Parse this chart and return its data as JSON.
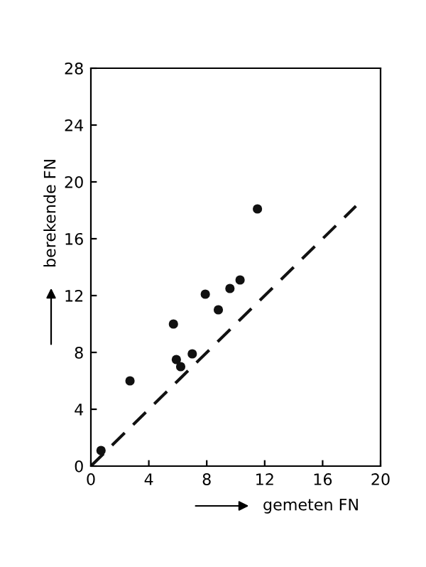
{
  "chart_data": {
    "type": "scatter",
    "xlabel": "gemeten FN",
    "ylabel": "berekende FN",
    "xlim": [
      0,
      20
    ],
    "ylim": [
      0,
      28
    ],
    "xticks": [
      0,
      4,
      8,
      12,
      16,
      20
    ],
    "yticks": [
      0,
      4,
      8,
      12,
      16,
      20,
      24,
      28
    ],
    "grid": false,
    "legend": false,
    "marker": "circle",
    "series": [
      {
        "color": "#111111",
        "x": [
          0.7,
          2.7,
          5.7,
          5.9,
          6.2,
          7.0,
          7.9,
          8.8,
          9.6,
          10.3,
          11.5
        ],
        "values": [
          1.1,
          6.0,
          10.0,
          7.5,
          7.0,
          7.9,
          12.1,
          11.0,
          12.5,
          13.1,
          18.1
        ]
      },
      {
        "type": "line",
        "color": "#111111",
        "line_style": "dashed",
        "marker": "none",
        "x": [
          0,
          18.3
        ],
        "values": [
          0,
          18.3
        ]
      }
    ]
  }
}
